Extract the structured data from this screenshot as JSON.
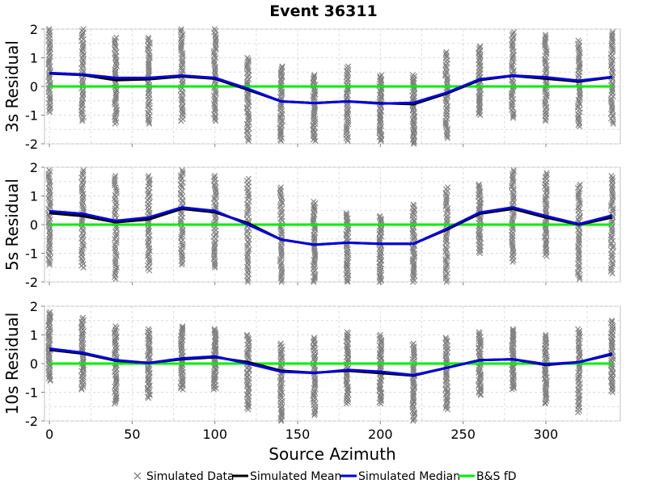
{
  "chart_data": {
    "type": "line",
    "title": "Event 36311",
    "xlabel": "Source Azimuth",
    "xlim": [
      -3,
      345
    ],
    "x_ticks": [
      0,
      50,
      100,
      150,
      200,
      250,
      300
    ],
    "x": [
      0,
      20,
      40,
      60,
      80,
      100,
      120,
      140,
      160,
      180,
      200,
      220,
      240,
      260,
      280,
      300,
      320,
      340
    ],
    "legend": [
      "Simulated Data",
      "Simulated Mean",
      "Simulated Median",
      "B&S fD"
    ],
    "legend_position": "bottom",
    "grid": true,
    "colors": {
      "data": "#808080",
      "mean": "#000000",
      "median": "#0000dd",
      "model": "#00ee00",
      "grid": "#dcdcdc",
      "frame": "#c0c0c0"
    },
    "panels": [
      {
        "ylabel": "3s Residual",
        "ylim": [
          -2,
          2
        ],
        "y_ticks": [
          -2,
          -1,
          0,
          1,
          2
        ],
        "series": [
          {
            "name": "Simulated Mean",
            "values": [
              0.45,
              0.4,
              0.22,
              0.25,
              0.35,
              0.27,
              -0.12,
              -0.52,
              -0.58,
              -0.52,
              -0.58,
              -0.62,
              -0.25,
              0.22,
              0.37,
              0.27,
              0.17,
              0.32
            ]
          },
          {
            "name": "Simulated Median",
            "values": [
              0.47,
              0.42,
              0.3,
              0.3,
              0.38,
              0.3,
              -0.08,
              -0.52,
              -0.58,
              -0.52,
              -0.6,
              -0.57,
              -0.22,
              0.25,
              0.38,
              0.32,
              0.2,
              0.33
            ]
          },
          {
            "name": "B&S fD",
            "values": [
              0,
              0,
              0,
              0,
              0,
              0,
              0,
              0,
              0,
              0,
              0,
              0,
              0,
              0,
              0,
              0,
              0,
              0
            ]
          }
        ],
        "data_ranges": [
          [
            -0.9,
            2.0
          ],
          [
            -1.2,
            2.0
          ],
          [
            -1.3,
            1.7
          ],
          [
            -1.3,
            1.7
          ],
          [
            -1.2,
            2.0
          ],
          [
            -1.2,
            2.0
          ],
          [
            -1.9,
            1.0
          ],
          [
            -1.9,
            0.7
          ],
          [
            -1.9,
            0.4
          ],
          [
            -1.9,
            0.7
          ],
          [
            -1.9,
            0.4
          ],
          [
            -2.0,
            0.4
          ],
          [
            -1.8,
            1.2
          ],
          [
            -1.0,
            1.4
          ],
          [
            -1.1,
            1.9
          ],
          [
            -1.2,
            1.8
          ],
          [
            -1.4,
            1.6
          ],
          [
            -1.3,
            1.9
          ]
        ]
      },
      {
        "ylabel": "5s Residual",
        "ylim": [
          -2,
          2
        ],
        "y_ticks": [
          -2,
          -1,
          0,
          1,
          2
        ],
        "series": [
          {
            "name": "Simulated Mean",
            "values": [
              0.4,
              0.3,
              0.08,
              0.18,
              0.55,
              0.43,
              0.05,
              -0.52,
              -0.7,
              -0.63,
              -0.67,
              -0.67,
              -0.18,
              0.38,
              0.55,
              0.25,
              0.0,
              0.25
            ]
          },
          {
            "name": "Simulated Median",
            "values": [
              0.47,
              0.38,
              0.13,
              0.25,
              0.6,
              0.48,
              0.0,
              -0.52,
              -0.7,
              -0.63,
              -0.67,
              -0.67,
              -0.15,
              0.42,
              0.6,
              0.3,
              0.02,
              0.32
            ]
          },
          {
            "name": "B&S fD",
            "values": [
              0,
              0,
              0,
              0,
              0,
              0,
              0,
              0,
              0,
              0,
              0,
              0,
              0,
              0,
              0,
              0,
              0,
              0
            ]
          }
        ],
        "data_ranges": [
          [
            -1.4,
            1.9
          ],
          [
            -1.5,
            1.9
          ],
          [
            -1.9,
            1.7
          ],
          [
            -1.6,
            1.7
          ],
          [
            -1.4,
            1.9
          ],
          [
            -1.5,
            1.7
          ],
          [
            -2.0,
            1.6
          ],
          [
            -2.0,
            1.3
          ],
          [
            -2.0,
            0.8
          ],
          [
            -2.0,
            0.4
          ],
          [
            -2.0,
            0.3
          ],
          [
            -2.0,
            0.7
          ],
          [
            -2.0,
            1.3
          ],
          [
            -1.0,
            1.4
          ],
          [
            -1.3,
            1.9
          ],
          [
            -1.1,
            1.8
          ],
          [
            -1.9,
            1.4
          ],
          [
            -1.7,
            1.7
          ]
        ]
      },
      {
        "ylabel": "10s Residual",
        "ylim": [
          -2,
          2
        ],
        "y_ticks": [
          -2,
          -1,
          0,
          1,
          2
        ],
        "series": [
          {
            "name": "Simulated Mean",
            "values": [
              0.48,
              0.35,
              0.1,
              0.02,
              0.15,
              0.22,
              0.05,
              -0.25,
              -0.32,
              -0.25,
              -0.33,
              -0.42,
              -0.15,
              0.12,
              0.15,
              -0.05,
              0.05,
              0.32
            ]
          },
          {
            "name": "Simulated Median",
            "values": [
              0.52,
              0.38,
              0.12,
              0.02,
              0.18,
              0.25,
              0.0,
              -0.28,
              -0.33,
              -0.22,
              -0.28,
              -0.4,
              -0.15,
              0.12,
              0.15,
              -0.02,
              0.05,
              0.35
            ]
          },
          {
            "name": "B&S fD",
            "values": [
              0,
              0,
              0,
              0,
              0,
              0,
              0,
              0,
              0,
              0,
              0,
              0,
              0,
              0,
              0,
              0,
              0,
              0
            ]
          }
        ],
        "data_ranges": [
          [
            -0.6,
            1.8
          ],
          [
            -0.9,
            1.6
          ],
          [
            -1.4,
            1.3
          ],
          [
            -1.2,
            1.2
          ],
          [
            -0.9,
            1.3
          ],
          [
            -0.9,
            1.2
          ],
          [
            -1.6,
            1.0
          ],
          [
            -2.0,
            0.7
          ],
          [
            -1.8,
            0.9
          ],
          [
            -1.4,
            1.1
          ],
          [
            -1.4,
            1.0
          ],
          [
            -2.0,
            0.7
          ],
          [
            -1.6,
            0.9
          ],
          [
            -1.1,
            1.1
          ],
          [
            -0.9,
            1.2
          ],
          [
            -1.4,
            1.0
          ],
          [
            -1.7,
            1.2
          ],
          [
            -1.0,
            1.5
          ]
        ]
      }
    ]
  }
}
